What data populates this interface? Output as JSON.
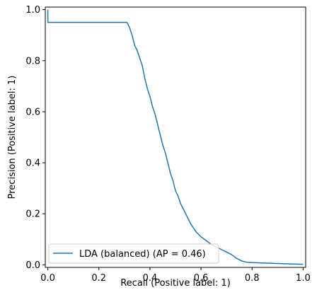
{
  "chart_data": {
    "type": "line",
    "title": "",
    "xlabel": "Recall (Positive label: 1)",
    "ylabel": "Precision (Positive label: 1)",
    "xlim": [
      -0.01,
      1.01
    ],
    "ylim": [
      -0.01,
      1.01
    ],
    "xticks": [
      "0.0",
      "0.2",
      "0.4",
      "0.6",
      "0.8",
      "1.0"
    ],
    "yticks": [
      "0.0",
      "0.2",
      "0.4",
      "0.6",
      "0.8",
      "1.0"
    ],
    "grid": false,
    "legend_position": "lower-left",
    "series": [
      {
        "name": "LDA (balanced) (AP = 0.46)",
        "color": "#1f77b4",
        "x": [
          0.0,
          0.0,
          0.005,
          0.005,
          0.31,
          0.31,
          0.32,
          0.33,
          0.34,
          0.35,
          0.36,
          0.37,
          0.38,
          0.39,
          0.4,
          0.41,
          0.42,
          0.43,
          0.44,
          0.45,
          0.46,
          0.47,
          0.48,
          0.49,
          0.5,
          0.51,
          0.52,
          0.53,
          0.54,
          0.56,
          0.58,
          0.6,
          0.62,
          0.64,
          0.66,
          0.68,
          0.7,
          0.72,
          0.74,
          0.76,
          0.78,
          0.82,
          0.88,
          0.94,
          1.0
        ],
        "y": [
          1.0,
          0.95,
          0.95,
          0.95,
          0.95,
          0.95,
          0.93,
          0.9,
          0.86,
          0.84,
          0.81,
          0.78,
          0.73,
          0.69,
          0.66,
          0.62,
          0.59,
          0.55,
          0.51,
          0.47,
          0.44,
          0.4,
          0.36,
          0.33,
          0.29,
          0.27,
          0.24,
          0.22,
          0.2,
          0.16,
          0.13,
          0.11,
          0.095,
          0.08,
          0.07,
          0.06,
          0.05,
          0.04,
          0.025,
          0.015,
          0.01,
          0.008,
          0.006,
          0.004,
          0.002
        ]
      }
    ]
  }
}
